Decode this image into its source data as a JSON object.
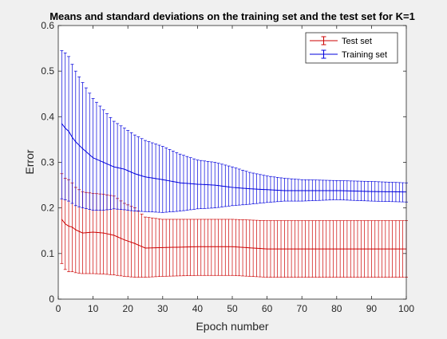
{
  "figure": {
    "background": "#f0f0f0",
    "axes_background": "#ffffff"
  },
  "chart_data": {
    "type": "line",
    "title": "Means and standard deviations on the training set and the test set for K=1",
    "xlabel": "Epoch number",
    "ylabel": "Error",
    "xlim": [
      0,
      100
    ],
    "ylim": [
      0,
      0.6
    ],
    "xticks": [
      0,
      10,
      20,
      30,
      40,
      50,
      60,
      70,
      80,
      90,
      100
    ],
    "yticks": [
      0,
      0.1,
      0.2,
      0.3,
      0.4,
      0.5,
      0.6
    ],
    "ytick_labels": [
      "0",
      "0.1",
      "0.2",
      "0.3",
      "0.4",
      "0.5",
      "0.6"
    ],
    "grid": false,
    "legend_position": "top-right",
    "errorbars": true,
    "series": [
      {
        "name": "Test set",
        "color": "#cc0000",
        "x": [
          1,
          2,
          3,
          4,
          5,
          7,
          10,
          13,
          16,
          19,
          22,
          25,
          30,
          40,
          50,
          60,
          70,
          80,
          90,
          100
        ],
        "mean": [
          0.175,
          0.165,
          0.16,
          0.158,
          0.152,
          0.145,
          0.147,
          0.145,
          0.14,
          0.13,
          0.122,
          0.112,
          0.113,
          0.115,
          0.115,
          0.11,
          0.11,
          0.11,
          0.11,
          0.11
        ],
        "lower": [
          0.078,
          0.065,
          0.06,
          0.06,
          0.058,
          0.056,
          0.056,
          0.055,
          0.053,
          0.05,
          0.048,
          0.048,
          0.05,
          0.052,
          0.052,
          0.048,
          0.048,
          0.048,
          0.048,
          0.048
        ],
        "upper": [
          0.275,
          0.265,
          0.262,
          0.255,
          0.245,
          0.235,
          0.232,
          0.23,
          0.226,
          0.21,
          0.2,
          0.18,
          0.175,
          0.175,
          0.175,
          0.172,
          0.172,
          0.172,
          0.172,
          0.172
        ]
      },
      {
        "name": "Training set",
        "color": "#0000dd",
        "x": [
          1,
          2,
          3,
          4,
          5,
          7,
          10,
          13,
          16,
          19,
          22,
          25,
          30,
          35,
          40,
          45,
          50,
          55,
          60,
          65,
          70,
          80,
          90,
          100
        ],
        "mean": [
          0.385,
          0.375,
          0.368,
          0.355,
          0.345,
          0.33,
          0.31,
          0.3,
          0.29,
          0.285,
          0.275,
          0.268,
          0.262,
          0.255,
          0.252,
          0.25,
          0.245,
          0.242,
          0.24,
          0.238,
          0.238,
          0.238,
          0.236,
          0.235
        ],
        "lower": [
          0.22,
          0.218,
          0.215,
          0.21,
          0.205,
          0.2,
          0.195,
          0.195,
          0.198,
          0.196,
          0.193,
          0.192,
          0.19,
          0.193,
          0.198,
          0.2,
          0.205,
          0.208,
          0.212,
          0.215,
          0.215,
          0.218,
          0.215,
          0.213
        ],
        "upper": [
          0.545,
          0.54,
          0.532,
          0.515,
          0.5,
          0.475,
          0.44,
          0.415,
          0.39,
          0.375,
          0.36,
          0.348,
          0.335,
          0.318,
          0.305,
          0.3,
          0.29,
          0.278,
          0.27,
          0.265,
          0.262,
          0.26,
          0.258,
          0.255
        ]
      }
    ]
  }
}
